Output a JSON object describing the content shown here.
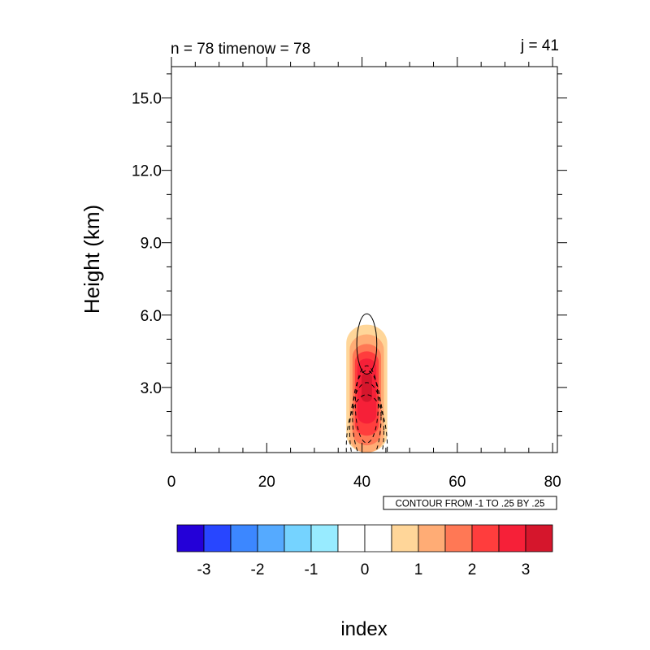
{
  "chart_data": {
    "type": "heatmap",
    "title_left": "n = 78 timenow = 78",
    "title_right": "j = 41",
    "xlabel": "index",
    "ylabel": "Height (km)",
    "xlim": [
      0,
      81
    ],
    "ylim": [
      0.3,
      16.3
    ],
    "xticks": [
      0,
      20,
      40,
      60,
      80
    ],
    "xtick_labels": [
      "0",
      "20",
      "40",
      "60",
      "80"
    ],
    "yticks": [
      3,
      6,
      9,
      12,
      15
    ],
    "ytick_labels": [
      "3.0",
      "6.0",
      "9.0",
      "12.0",
      "15.0"
    ],
    "contour_info": "CONTOUR FROM -1 TO .25 BY .25",
    "colorbar": {
      "colors": [
        "#2400d8",
        "#2846ff",
        "#3c87ff",
        "#55aaff",
        "#75d3ff",
        "#98ebff",
        "#ffffff",
        "#ffffff",
        "#ffd699",
        "#ffac75",
        "#ff7855",
        "#ff3d3d",
        "#f62038",
        "#d5162c"
      ],
      "tick_labels": [
        "-3",
        "-2",
        "-1",
        "0",
        "1",
        "2",
        "3"
      ]
    },
    "shaded_feature": {
      "center_x": 41,
      "center_z": 3.0,
      "levels": [
        {
          "value": 0.5,
          "color": "#ffd699",
          "x_halfwidth": 4.3,
          "z_min": 0.3,
          "z_max": 5.6
        },
        {
          "value": 1.0,
          "color": "#ffac75",
          "x_halfwidth": 3.6,
          "z_min": 0.3,
          "z_max": 5.2
        },
        {
          "value": 1.5,
          "color": "#ff7855",
          "x_halfwidth": 3.0,
          "z_min": 0.6,
          "z_max": 4.8
        },
        {
          "value": 2.0,
          "color": "#ff3d3d",
          "x_halfwidth": 2.5,
          "z_min": 1.0,
          "z_max": 4.5
        },
        {
          "value": 2.5,
          "color": "#f62038",
          "x_halfwidth": 2.0,
          "z_min": 1.5,
          "z_max": 4.2
        },
        {
          "value": 3.0,
          "color": "#d5162c",
          "x_halfwidth": 1.1,
          "z_min": 2.4,
          "z_max": 3.6
        }
      ]
    },
    "line_contours": {
      "solid": [
        {
          "cx": 41,
          "cz": 4.8,
          "rx": 2.1,
          "rz": 1.25
        }
      ],
      "dashed": [
        {
          "cx": 41,
          "cz": 2.3,
          "rx": 2.4,
          "rz": 1.6
        },
        {
          "cx": 41,
          "cz": 1.8,
          "rx": 3.0,
          "rz": 1.9
        },
        {
          "cx": 41,
          "cz": 1.2,
          "rx": 3.6,
          "rz": 2.0
        },
        {
          "cx": 41,
          "cz": 0.5,
          "rx": 4.3,
          "rz": 2.2
        }
      ]
    }
  }
}
